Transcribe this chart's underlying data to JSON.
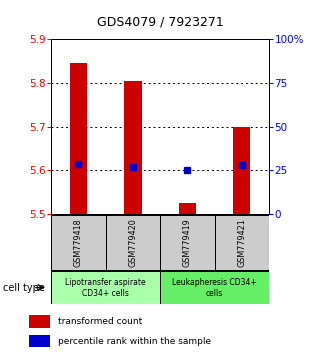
{
  "title": "GDS4079 / 7923271",
  "samples": [
    "GSM779418",
    "GSM779420",
    "GSM779419",
    "GSM779421"
  ],
  "red_values": [
    5.845,
    5.805,
    5.525,
    5.7
  ],
  "blue_values": [
    5.615,
    5.608,
    5.6,
    5.612
  ],
  "red_base": 5.5,
  "ylim_left": [
    5.5,
    5.9
  ],
  "ylim_right": [
    0,
    100
  ],
  "yticks_left": [
    5.5,
    5.6,
    5.7,
    5.8,
    5.9
  ],
  "yticks_right": [
    0,
    25,
    50,
    75,
    100
  ],
  "ytick_labels_right": [
    "0",
    "25",
    "50",
    "75",
    "100%"
  ],
  "groups": [
    {
      "label": "Lipotransfer aspirate\nCD34+ cells",
      "color": "#aaffaa",
      "start": 0,
      "end": 2
    },
    {
      "label": "Leukapheresis CD34+\ncells",
      "color": "#66ee66",
      "start": 2,
      "end": 4
    }
  ],
  "cell_type_label": "cell type",
  "legend_red": "transformed count",
  "legend_blue": "percentile rank within the sample",
  "bar_color": "#cc0000",
  "dot_color": "#0000cc",
  "background_color": "#ffffff",
  "sample_bg": "#cccccc",
  "grid_yticks": [
    5.6,
    5.7,
    5.8
  ]
}
